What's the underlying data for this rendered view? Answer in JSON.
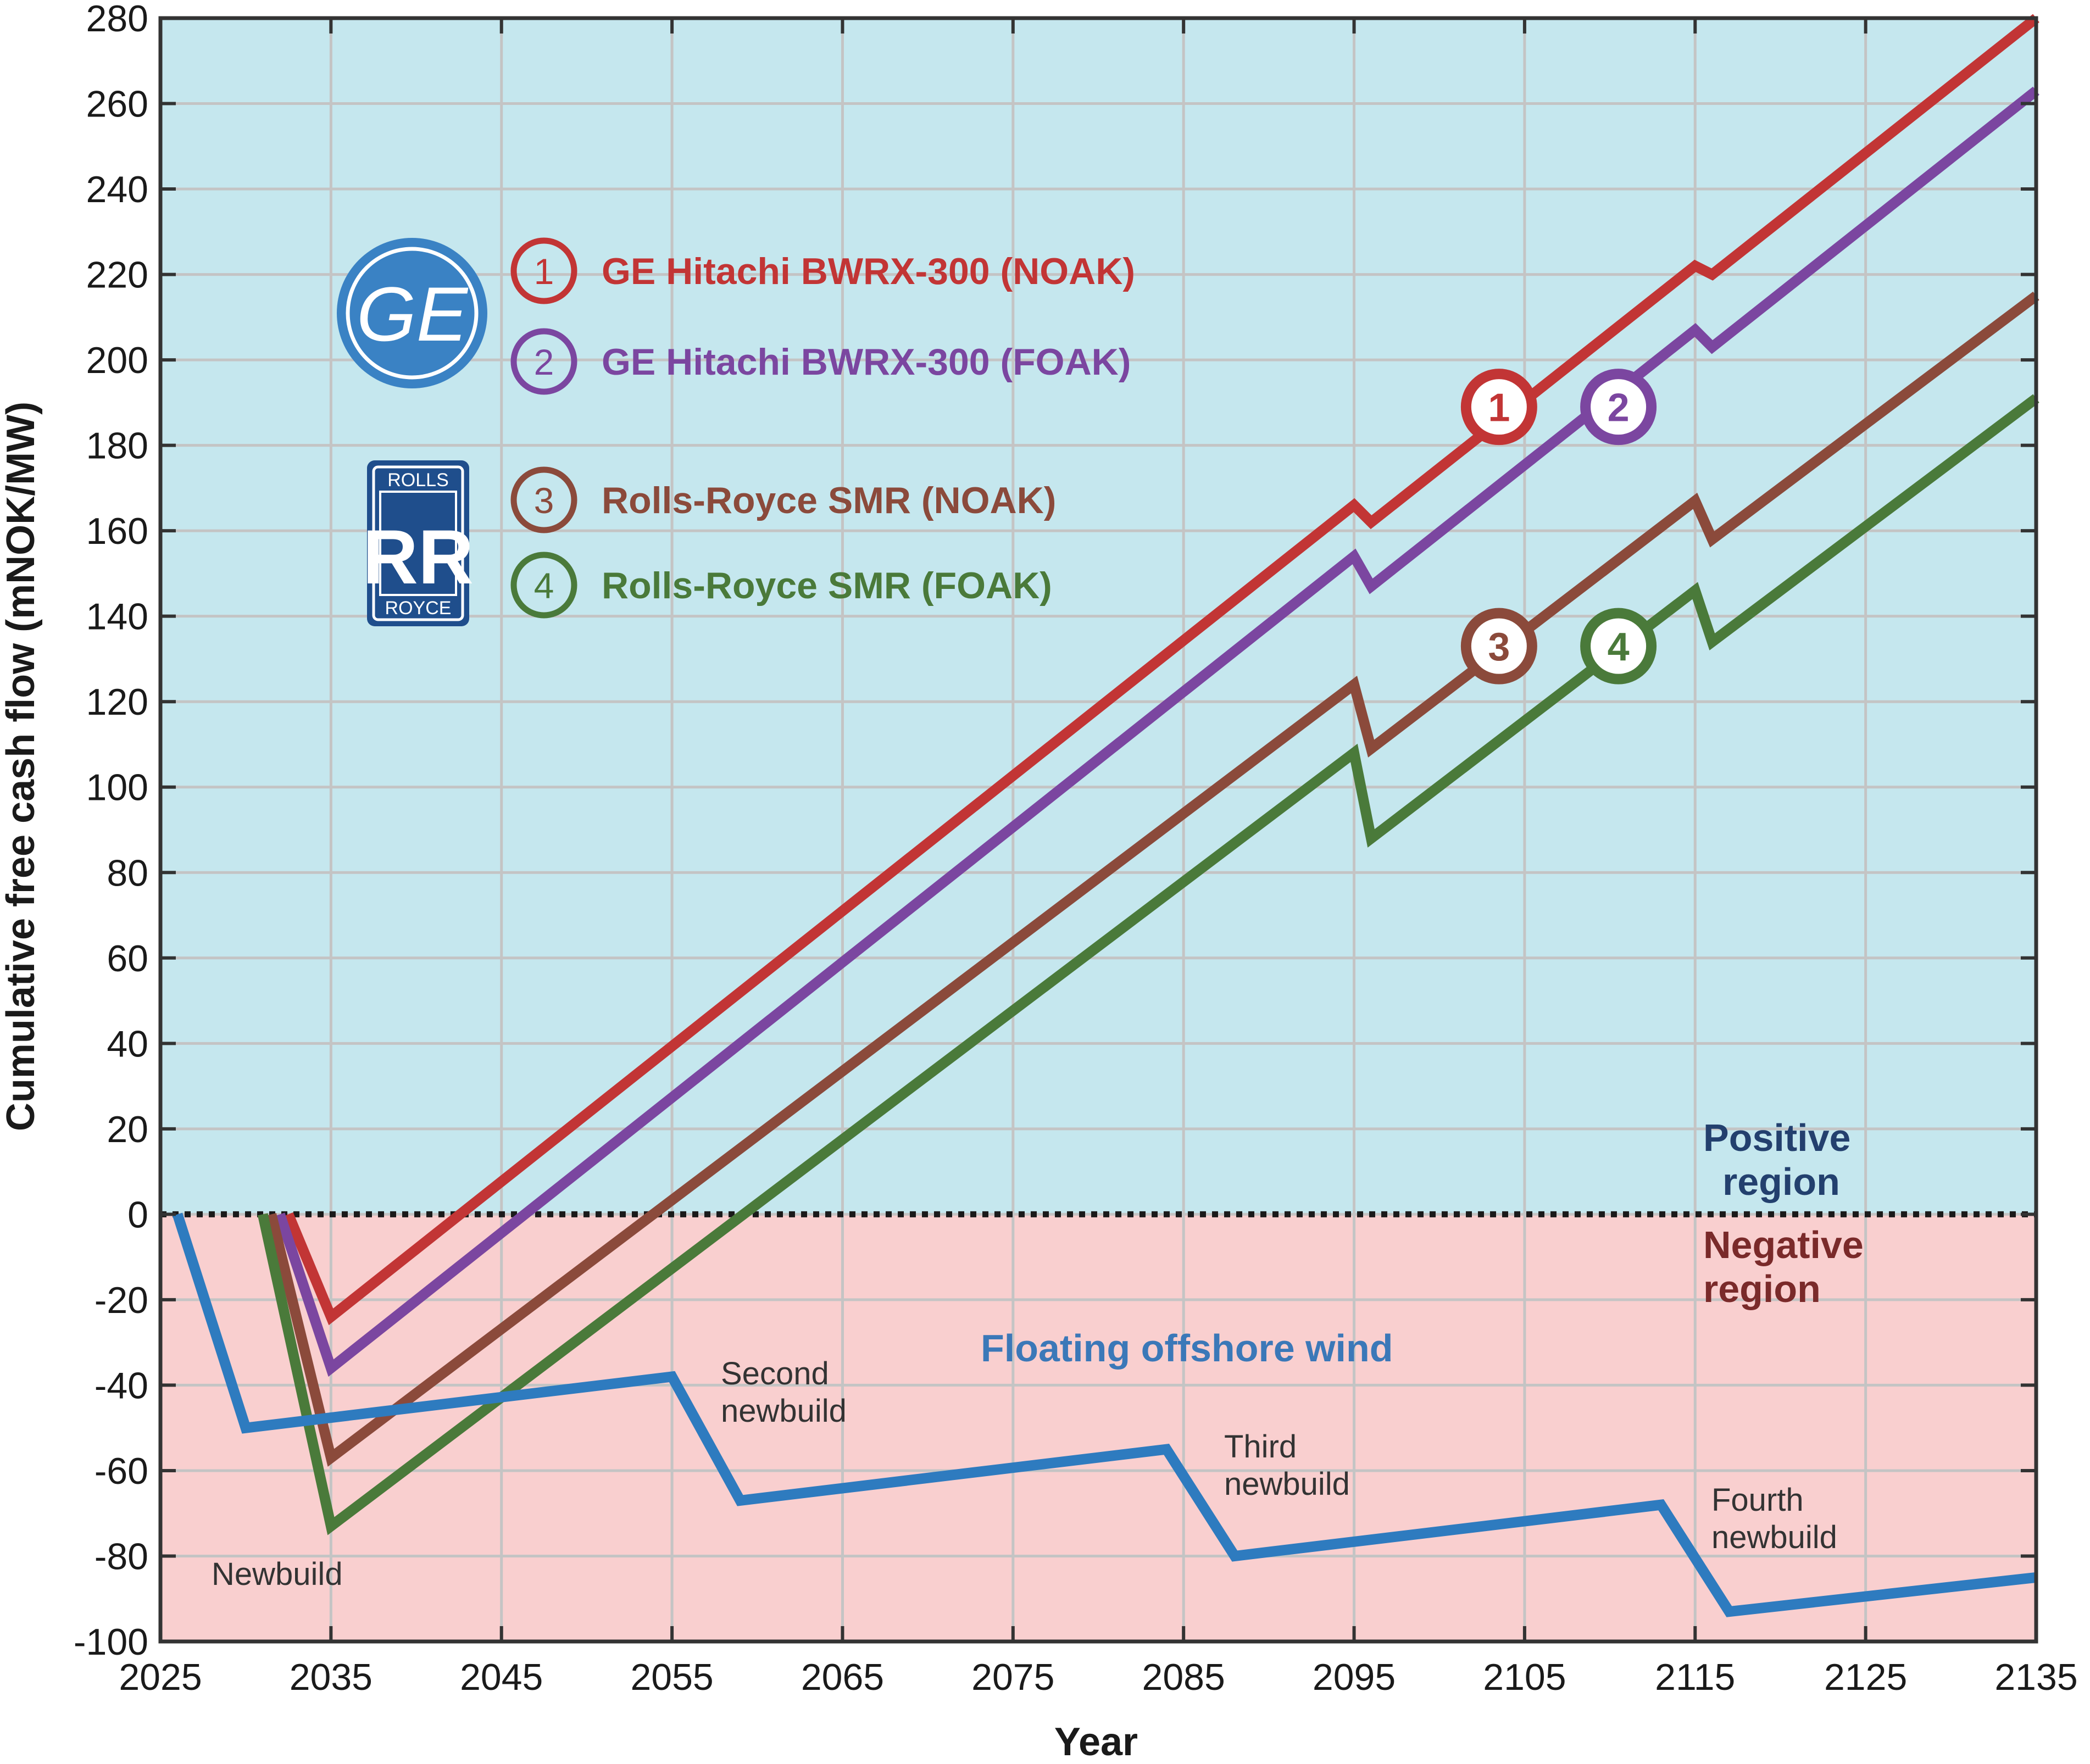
{
  "chart_data": {
    "type": "line",
    "xlabel": "Year",
    "ylabel": "Cumulative free cash flow (mNOK/MW)",
    "xlim": [
      2025,
      2135
    ],
    "ylim": [
      -100,
      280
    ],
    "xticks": [
      "2025",
      "2035",
      "2045",
      "2055",
      "2065",
      "2075",
      "2085",
      "2095",
      "2105",
      "2115",
      "2125",
      "2135"
    ],
    "yticks": [
      "280",
      "260",
      "240",
      "220",
      "200",
      "180",
      "160",
      "140",
      "120",
      "100",
      "80",
      "60",
      "40",
      "20",
      "0",
      "-20",
      "-40",
      "-60",
      "-80",
      "-100"
    ],
    "grid": true,
    "zero_line": "dotted",
    "regions": {
      "positive": {
        "label": "Positive region",
        "color": "#c5e7ee"
      },
      "negative": {
        "label": "Negative region",
        "color": "#f9cfcf"
      }
    },
    "region_labels": {
      "positive_1": "Positive",
      "positive_2": "region",
      "negative_1": "Negative",
      "negative_2": "region"
    },
    "series": [
      {
        "name": "GE Hitachi BWRX-300 (NOAK)",
        "marker": "1",
        "color": "#c23535",
        "points": [
          [
            2032.5,
            0
          ],
          [
            2035,
            -24
          ],
          [
            2095,
            166
          ],
          [
            2096,
            162
          ],
          [
            2115,
            222
          ],
          [
            2116,
            220
          ],
          [
            2135,
            280
          ]
        ]
      },
      {
        "name": "GE Hitachi BWRX-300 (FOAK)",
        "marker": "2",
        "color": "#7b46a0",
        "points": [
          [
            2032,
            0
          ],
          [
            2035,
            -36
          ],
          [
            2095,
            154
          ],
          [
            2096,
            147
          ],
          [
            2115,
            207
          ],
          [
            2116,
            203
          ],
          [
            2135,
            263
          ]
        ]
      },
      {
        "name": "Rolls-Royce SMR (NOAK)",
        "marker": "3",
        "color": "#8b4a3b",
        "points": [
          [
            2031.5,
            0
          ],
          [
            2035,
            -57
          ],
          [
            2095,
            124
          ],
          [
            2096,
            109
          ],
          [
            2115,
            167
          ],
          [
            2116,
            158
          ],
          [
            2135,
            215
          ]
        ]
      },
      {
        "name": "Rolls-Royce SMR (FOAK)",
        "marker": "4",
        "color": "#4a7a3a",
        "points": [
          [
            2031,
            0
          ],
          [
            2035,
            -73
          ],
          [
            2095,
            108
          ],
          [
            2096,
            88
          ],
          [
            2115,
            146
          ],
          [
            2116,
            134
          ],
          [
            2135,
            191
          ]
        ]
      },
      {
        "name": "Floating offshore wind",
        "color": "#2e7bbf",
        "points": [
          [
            2026,
            0
          ],
          [
            2030,
            -50
          ],
          [
            2055,
            -38
          ],
          [
            2059,
            -67
          ],
          [
            2084,
            -55
          ],
          [
            2088,
            -80
          ],
          [
            2113,
            -68
          ],
          [
            2117,
            -93
          ],
          [
            2135,
            -85
          ]
        ]
      }
    ],
    "legend": [
      {
        "marker": "1",
        "label": "GE Hitachi BWRX-300 (NOAK)",
        "color": "#c23535"
      },
      {
        "marker": "2",
        "label": "GE Hitachi BWRX-300 (FOAK)",
        "color": "#7b46a0"
      },
      {
        "marker": "3",
        "label": "Rolls-Royce SMR (NOAK)",
        "color": "#8b4a3b"
      },
      {
        "marker": "4",
        "label": "Rolls-Royce SMR (FOAK)",
        "color": "#4a7a3a"
      }
    ],
    "series_markers": [
      {
        "marker": "1",
        "x": 2103.5,
        "y": 189,
        "color": "#c23535"
      },
      {
        "marker": "2",
        "x": 2110.5,
        "y": 189,
        "color": "#7b46a0"
      },
      {
        "marker": "3",
        "x": 2103.5,
        "y": 133,
        "color": "#8b4a3b"
      },
      {
        "marker": "4",
        "x": 2110.5,
        "y": 133,
        "color": "#4a7a3a"
      }
    ],
    "annotations": {
      "wind_label": "Floating offshore wind",
      "newbuild": "Newbuild",
      "second_1": "Second",
      "second_2": "newbuild",
      "third_1": "Third",
      "third_2": "newbuild",
      "fourth_1": "Fourth",
      "fourth_2": "newbuild"
    },
    "logos": {
      "ge": {
        "text": "GE",
        "color": "#3a82c4"
      },
      "rolls_royce": {
        "top": "ROLLS",
        "mark": "RR",
        "bottom": "ROYCE",
        "color": "#1f4e8c"
      }
    }
  }
}
